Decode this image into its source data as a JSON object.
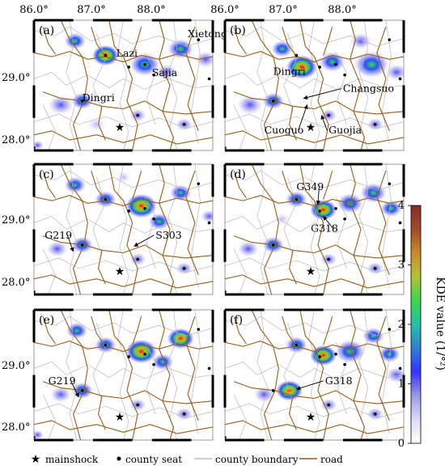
{
  "top_axis_ticks": [
    "86.0°",
    "87.0°",
    "88.0°"
  ],
  "left_axis_ticks": [
    "29.0°",
    "28.0°"
  ],
  "panels": [
    {
      "id": "a",
      "label": "(a)",
      "annotations": [
        {
          "text": "Xietongmen",
          "tx": 0.86,
          "ty": 0.87
        },
        {
          "text": "Lazi",
          "tx": 0.46,
          "ty": 0.72
        },
        {
          "text": "Sajia",
          "tx": 0.66,
          "ty": 0.57
        },
        {
          "text": "Dingri",
          "tx": 0.27,
          "ty": 0.38
        }
      ]
    },
    {
      "id": "b",
      "label": "(b)",
      "annotations": [
        {
          "text": "Dingri",
          "tx": 0.27,
          "ty": 0.58
        },
        {
          "text": "Changsuo",
          "tx": 0.66,
          "ty": 0.45,
          "ax": 0.44,
          "ay": 0.4
        },
        {
          "text": "Cuoguo",
          "tx": 0.22,
          "ty": 0.13,
          "ax": 0.46,
          "ay": 0.35
        },
        {
          "text": "Guojia",
          "tx": 0.58,
          "ty": 0.13,
          "ax": 0.54,
          "ay": 0.27
        }
      ]
    },
    {
      "id": "c",
      "label": "(c)",
      "annotations": [
        {
          "text": "G219",
          "tx": 0.06,
          "ty": 0.43,
          "ax": 0.22,
          "ay": 0.33
        },
        {
          "text": "S303",
          "tx": 0.68,
          "ty": 0.43,
          "ax": 0.56,
          "ay": 0.37
        }
      ]
    },
    {
      "id": "d",
      "label": "(d)",
      "annotations": [
        {
          "text": "G349",
          "tx": 0.4,
          "ty": 0.8,
          "ax": 0.52,
          "ay": 0.69
        },
        {
          "text": "G318",
          "tx": 0.48,
          "ty": 0.48,
          "ax": 0.55,
          "ay": 0.6
        }
      ]
    },
    {
      "id": "e",
      "label": "(e)",
      "annotations": [
        {
          "text": "G219",
          "tx": 0.08,
          "ty": 0.43,
          "ax": 0.25,
          "ay": 0.33
        }
      ]
    },
    {
      "id": "f",
      "label": "(f)",
      "annotations": [
        {
          "text": "G318",
          "tx": 0.56,
          "ty": 0.43,
          "ax": 0.4,
          "ay": 0.39
        }
      ]
    }
  ],
  "colorbar": {
    "title": "KDE value (1/°²)",
    "ticks": [
      "0",
      "1",
      "2",
      "3",
      "4"
    ],
    "max": 4,
    "stops": [
      "#ffffff",
      "#dcdcf5",
      "#9a9ae6",
      "#3333ff",
      "#2f7fd1",
      "#22c2a8",
      "#3ad64c",
      "#b3c233",
      "#c98a2c",
      "#a14a2a",
      "#8a2a2a"
    ]
  },
  "legend": {
    "mainshock": "mainshock",
    "county_seat": "county seat",
    "county_boundary": "county boundary",
    "road": "road",
    "road_color": "#9a5d14",
    "boundary_color": "#b8b8b8"
  }
}
